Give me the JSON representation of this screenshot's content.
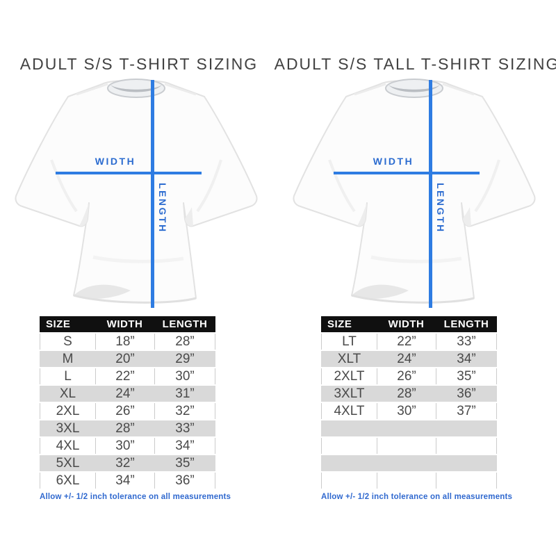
{
  "theme": {
    "accent_blue": "#2e7ce2",
    "label_blue": "#2c6cd0",
    "note_blue": "#3069cf",
    "title_color": "#414141",
    "header_bg": "#101010",
    "header_text": "#ffffff",
    "row_alt": "#d9d9d9",
    "cell_border": "#cbcbcb",
    "cell_text": "#4a4a4a",
    "page_bg": "#ffffff"
  },
  "columns": [
    {
      "id": "regular",
      "title": "ADULT S/S T-SHIRT SIZING",
      "diagram": {
        "width_label": "WIDTH",
        "length_label": "LENGTH"
      },
      "table": {
        "headers": [
          "SIZE",
          "WIDTH",
          "LENGTH"
        ],
        "rows": [
          [
            "S",
            "18”",
            "28”"
          ],
          [
            "M",
            "20”",
            "29”"
          ],
          [
            "L",
            "22”",
            "30”"
          ],
          [
            "XL",
            "24”",
            "31”"
          ],
          [
            "2XL",
            "26”",
            "32”"
          ],
          [
            "3XL",
            "28”",
            "33”"
          ],
          [
            "4XL",
            "30”",
            "34”"
          ],
          [
            "5XL",
            "32”",
            "35”"
          ],
          [
            "6XL",
            "34”",
            "36”"
          ]
        ],
        "empty_rows": 0
      },
      "note": "Allow +/- 1/2 inch tolerance on all measurements"
    },
    {
      "id": "tall",
      "title": "ADULT S/S TALL T-SHIRT SIZING",
      "diagram": {
        "width_label": "WIDTH",
        "length_label": "LENGTH"
      },
      "table": {
        "headers": [
          "SIZE",
          "WIDTH",
          "LENGTH"
        ],
        "rows": [
          [
            "LT",
            "22”",
            "33”"
          ],
          [
            "XLT",
            "24”",
            "34”"
          ],
          [
            "2XLT",
            "26”",
            "35”"
          ],
          [
            "3XLT",
            "28”",
            "36”"
          ],
          [
            "4XLT",
            "30”",
            "37”"
          ]
        ],
        "empty_rows": 4
      },
      "note": "Allow +/- 1/2 inch tolerance on all measurements"
    }
  ]
}
